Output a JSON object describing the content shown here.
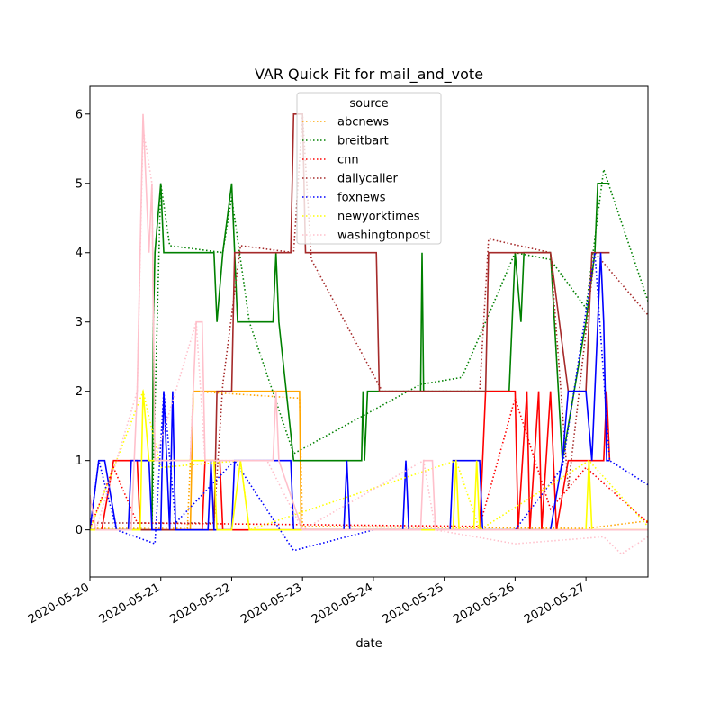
{
  "chart_data": {
    "type": "line",
    "title": "VAR Quick Fit for mail_and_vote",
    "xlabel": "date",
    "ylabel": "",
    "x_ticks": [
      "2020-05-20",
      "2020-05-21",
      "2020-05-22",
      "2020-05-23",
      "2020-05-24",
      "2020-05-25",
      "2020-05-26",
      "2020-05-27"
    ],
    "y_ticks": [
      0,
      1,
      2,
      3,
      4,
      5,
      6
    ],
    "xlim": [
      "2020-05-20",
      "2020-05-27T21:00"
    ],
    "ylim": [
      -0.68,
      6.4
    ],
    "legend": {
      "title": "source",
      "placement": "upper center"
    },
    "line_styles": {
      "observed": "solid",
      "fit": "dotted"
    },
    "series": [
      {
        "name": "abcnews",
        "color": "#ffa500",
        "observed": [
          [
            "2020-05-20T00:00",
            0
          ],
          [
            "2020-05-21T10:00",
            0
          ],
          [
            "2020-05-21T11:00",
            2
          ],
          [
            "2020-05-22T23:00",
            2
          ],
          [
            "2020-05-22T23:30",
            0
          ],
          [
            "2020-05-27T21:00",
            0
          ]
        ],
        "fit": [
          [
            "2020-05-20T00:00",
            0.02
          ],
          [
            "2020-05-21T09:00",
            0.02
          ],
          [
            "2020-05-21T11:00",
            2.0
          ],
          [
            "2020-05-22T23:00",
            1.9
          ],
          [
            "2020-05-23T00:00",
            0.05
          ],
          [
            "2020-05-27T00:00",
            0.02
          ],
          [
            "2020-05-27T21:00",
            0.13
          ]
        ]
      },
      {
        "name": "breitbart",
        "color": "#008000",
        "observed": [
          [
            "2020-05-20T00:00",
            0
          ],
          [
            "2020-05-20T21:00",
            0
          ],
          [
            "2020-05-20T21:30",
            3
          ],
          [
            "2020-05-20T22:00",
            4
          ],
          [
            "2020-05-21T00:00",
            5
          ],
          [
            "2020-05-21T01:00",
            4
          ],
          [
            "2020-05-21T18:00",
            4
          ],
          [
            "2020-05-21T19:00",
            3
          ],
          [
            "2020-05-21T21:00",
            4
          ],
          [
            "2020-05-22T00:00",
            5
          ],
          [
            "2020-05-22T02:00",
            3
          ],
          [
            "2020-05-22T14:00",
            3
          ],
          [
            "2020-05-22T15:00",
            4
          ],
          [
            "2020-05-22T16:00",
            3
          ],
          [
            "2020-05-22T21:00",
            1
          ],
          [
            "2020-05-23T20:00",
            1
          ],
          [
            "2020-05-23T20:30",
            2
          ],
          [
            "2020-05-23T21:00",
            1
          ],
          [
            "2020-05-23T22:00",
            2
          ],
          [
            "2020-05-24T00:00",
            2
          ],
          [
            "2020-05-24T16:00",
            2
          ],
          [
            "2020-05-24T16:30",
            4
          ],
          [
            "2020-05-24T17:00",
            2
          ],
          [
            "2020-05-25T22:00",
            2
          ],
          [
            "2020-05-26T00:00",
            4
          ],
          [
            "2020-05-26T02:00",
            3
          ],
          [
            "2020-05-26T03:00",
            4
          ],
          [
            "2020-05-26T12:00",
            4
          ],
          [
            "2020-05-26T16:00",
            1
          ],
          [
            "2020-05-27T00:00",
            3
          ],
          [
            "2020-05-27T03:00",
            4
          ],
          [
            "2020-05-27T04:00",
            5
          ],
          [
            "2020-05-27T08:00",
            5
          ]
        ],
        "fit": [
          [
            "2020-05-20T21:00",
            0.1
          ],
          [
            "2020-05-21T00:00",
            5.0
          ],
          [
            "2020-05-21T03:00",
            4.1
          ],
          [
            "2020-05-21T21:00",
            4.0
          ],
          [
            "2020-05-22T00:00",
            4.8
          ],
          [
            "2020-05-22T06:00",
            3.0
          ],
          [
            "2020-05-22T21:00",
            1.1
          ],
          [
            "2020-05-24T16:00",
            2.1
          ],
          [
            "2020-05-25T06:00",
            2.2
          ],
          [
            "2020-05-26T00:00",
            4.0
          ],
          [
            "2020-05-26T12:00",
            3.9
          ],
          [
            "2020-05-27T00:00",
            3.2
          ],
          [
            "2020-05-27T06:00",
            5.2
          ],
          [
            "2020-05-27T21:00",
            3.3
          ]
        ]
      },
      {
        "name": "cnn",
        "color": "#ff0000",
        "observed": [
          [
            "2020-05-20T00:00",
            0
          ],
          [
            "2020-05-20T04:00",
            0
          ],
          [
            "2020-05-20T08:00",
            1
          ],
          [
            "2020-05-20T16:00",
            1
          ],
          [
            "2020-05-20T17:00",
            0
          ],
          [
            "2020-05-21T14:00",
            0
          ],
          [
            "2020-05-21T15:00",
            1
          ],
          [
            "2020-05-21T20:00",
            1
          ],
          [
            "2020-05-21T21:00",
            0
          ],
          [
            "2020-05-25T12:00",
            0
          ],
          [
            "2020-05-25T14:00",
            2
          ],
          [
            "2020-05-26T00:00",
            2
          ],
          [
            "2020-05-26T01:00",
            0
          ],
          [
            "2020-05-26T04:00",
            2
          ],
          [
            "2020-05-26T05:00",
            0
          ],
          [
            "2020-05-26T08:00",
            2
          ],
          [
            "2020-05-26T09:00",
            0
          ],
          [
            "2020-05-26T12:00",
            2
          ],
          [
            "2020-05-26T14:00",
            0
          ],
          [
            "2020-05-26T18:00",
            1
          ],
          [
            "2020-05-27T06:00",
            1
          ],
          [
            "2020-05-27T07:00",
            2
          ],
          [
            "2020-05-27T08:00",
            1
          ]
        ],
        "fit": [
          [
            "2020-05-20T00:00",
            0.02
          ],
          [
            "2020-05-20T08:00",
            0.9
          ],
          [
            "2020-05-20T16:00",
            0.1
          ],
          [
            "2020-05-25T12:00",
            0.05
          ],
          [
            "2020-05-26T00:00",
            1.9
          ],
          [
            "2020-05-26T12:00",
            0.3
          ],
          [
            "2020-05-27T00:00",
            0.9
          ],
          [
            "2020-05-27T21:00",
            0.1
          ]
        ]
      },
      {
        "name": "dailycaller",
        "color": "#a52a2a",
        "observed": [
          [
            "2020-05-20T00:00",
            0
          ],
          [
            "2020-05-21T00:00",
            0
          ],
          [
            "2020-05-21T18:00",
            0
          ],
          [
            "2020-05-21T19:00",
            2
          ],
          [
            "2020-05-22T00:00",
            2
          ],
          [
            "2020-05-22T01:00",
            4
          ],
          [
            "2020-05-22T20:00",
            4
          ],
          [
            "2020-05-22T21:00",
            6
          ],
          [
            "2020-05-23T00:00",
            6
          ],
          [
            "2020-05-23T01:00",
            4
          ],
          [
            "2020-05-24T01:00",
            4
          ],
          [
            "2020-05-24T02:00",
            2
          ],
          [
            "2020-05-25T14:00",
            2
          ],
          [
            "2020-05-25T15:00",
            4
          ],
          [
            "2020-05-26T12:00",
            4
          ],
          [
            "2020-05-26T18:00",
            2
          ],
          [
            "2020-05-27T00:00",
            2
          ],
          [
            "2020-05-27T02:00",
            4
          ],
          [
            "2020-05-27T08:00",
            4
          ]
        ],
        "fit": [
          [
            "2020-05-20T00:00",
            0.1
          ],
          [
            "2020-05-21T18:00",
            0.1
          ],
          [
            "2020-05-21T21:00",
            2.1
          ],
          [
            "2020-05-22T03:00",
            4.1
          ],
          [
            "2020-05-22T21:00",
            4.0
          ],
          [
            "2020-05-23T00:00",
            6.0
          ],
          [
            "2020-05-23T03:00",
            3.9
          ],
          [
            "2020-05-24T03:00",
            2.0
          ],
          [
            "2020-05-25T12:00",
            2.0
          ],
          [
            "2020-05-25T15:00",
            4.2
          ],
          [
            "2020-05-26T12:00",
            4.0
          ],
          [
            "2020-05-26T18:00",
            0.6
          ],
          [
            "2020-05-27T03:00",
            4.0
          ],
          [
            "2020-05-27T21:00",
            3.1
          ]
        ]
      },
      {
        "name": "foxnews",
        "color": "#0000ff",
        "observed": [
          [
            "2020-05-20T00:00",
            0
          ],
          [
            "2020-05-20T03:00",
            1
          ],
          [
            "2020-05-20T05:00",
            1
          ],
          [
            "2020-05-20T09:00",
            0
          ],
          [
            "2020-05-20T13:00",
            0
          ],
          [
            "2020-05-20T14:00",
            1
          ],
          [
            "2020-05-20T20:00",
            1
          ],
          [
            "2020-05-20T21:00",
            0
          ],
          [
            "2020-05-21T00:00",
            0
          ],
          [
            "2020-05-21T01:00",
            2
          ],
          [
            "2020-05-21T03:00",
            0
          ],
          [
            "2020-05-21T04:00",
            2
          ],
          [
            "2020-05-21T05:00",
            0
          ],
          [
            "2020-05-21T16:00",
            0
          ],
          [
            "2020-05-21T17:00",
            1
          ],
          [
            "2020-05-21T18:00",
            0
          ],
          [
            "2020-05-22T00:00",
            0
          ],
          [
            "2020-05-22T01:00",
            1
          ],
          [
            "2020-05-22T20:00",
            1
          ],
          [
            "2020-05-22T21:00",
            0
          ],
          [
            "2020-05-23T14:00",
            0
          ],
          [
            "2020-05-23T15:00",
            1
          ],
          [
            "2020-05-23T16:00",
            0
          ],
          [
            "2020-05-24T10:00",
            0
          ],
          [
            "2020-05-24T11:00",
            1
          ],
          [
            "2020-05-24T12:00",
            0
          ],
          [
            "2020-05-25T02:00",
            0
          ],
          [
            "2020-05-25T03:00",
            1
          ],
          [
            "2020-05-25T12:00",
            1
          ],
          [
            "2020-05-25T13:00",
            0
          ],
          [
            "2020-05-26T09:00",
            0
          ],
          [
            "2020-05-26T12:00",
            0
          ],
          [
            "2020-05-26T16:00",
            1
          ],
          [
            "2020-05-26T18:00",
            2
          ],
          [
            "2020-05-27T00:00",
            2
          ],
          [
            "2020-05-27T02:00",
            1
          ],
          [
            "2020-05-27T05:00",
            4
          ],
          [
            "2020-05-27T06:00",
            3
          ],
          [
            "2020-05-27T07:00",
            1
          ],
          [
            "2020-05-27T08:00",
            1
          ]
        ],
        "fit": [
          [
            "2020-05-20T00:00",
            0.0
          ],
          [
            "2020-05-20T03:00",
            1.0
          ],
          [
            "2020-05-20T09:00",
            0.0
          ],
          [
            "2020-05-20T22:00",
            -0.2
          ],
          [
            "2020-05-21T01:00",
            2.0
          ],
          [
            "2020-05-21T05:00",
            0.1
          ],
          [
            "2020-05-22T01:00",
            1.0
          ],
          [
            "2020-05-22T21:00",
            -0.3
          ],
          [
            "2020-05-24T00:00",
            0.0
          ],
          [
            "2020-05-26T00:00",
            0.0
          ],
          [
            "2020-05-26T16:00",
            0.9
          ],
          [
            "2020-05-27T03:00",
            4.0
          ],
          [
            "2020-05-27T08:00",
            1.0
          ],
          [
            "2020-05-27T21:00",
            0.65
          ]
        ]
      },
      {
        "name": "newyorktimes",
        "color": "#ffff00",
        "observed": [
          [
            "2020-05-20T00:00",
            0
          ],
          [
            "2020-05-20T17:00",
            0
          ],
          [
            "2020-05-20T18:00",
            2
          ],
          [
            "2020-05-20T20:00",
            1
          ],
          [
            "2020-05-21T18:00",
            1
          ],
          [
            "2020-05-21T19:00",
            0
          ],
          [
            "2020-05-22T00:00",
            0
          ],
          [
            "2020-05-22T03:00",
            1
          ],
          [
            "2020-05-22T06:00",
            0
          ],
          [
            "2020-05-25T03:00",
            0
          ],
          [
            "2020-05-25T04:00",
            1
          ],
          [
            "2020-05-25T05:00",
            0
          ],
          [
            "2020-05-25T10:00",
            0
          ],
          [
            "2020-05-25T11:00",
            1
          ],
          [
            "2020-05-25T12:00",
            0
          ],
          [
            "2020-05-27T00:00",
            0
          ],
          [
            "2020-05-27T01:00",
            1
          ],
          [
            "2020-05-27T02:00",
            0
          ],
          [
            "2020-05-27T21:00",
            0
          ]
        ],
        "fit": [
          [
            "2020-05-20T00:00",
            0.0
          ],
          [
            "2020-05-20T18:00",
            2.0
          ],
          [
            "2020-05-21T00:00",
            0.9
          ],
          [
            "2020-05-22T03:00",
            1.0
          ],
          [
            "2020-05-22T06:00",
            0.0
          ],
          [
            "2020-05-25T04:00",
            1.0
          ],
          [
            "2020-05-25T12:00",
            0.0
          ],
          [
            "2020-05-27T01:00",
            1.0
          ],
          [
            "2020-05-27T21:00",
            0.05
          ]
        ]
      },
      {
        "name": "washingtonpost",
        "color": "#ffc0cb",
        "observed": [
          [
            "2020-05-20T00:00",
            0.5
          ],
          [
            "2020-05-20T02:00",
            0
          ],
          [
            "2020-05-20T14:00",
            0
          ],
          [
            "2020-05-20T16:00",
            2
          ],
          [
            "2020-05-20T18:00",
            6
          ],
          [
            "2020-05-20T20:00",
            4
          ],
          [
            "2020-05-20T21:00",
            5
          ],
          [
            "2020-05-20T22:00",
            1
          ],
          [
            "2020-05-21T10:00",
            1
          ],
          [
            "2020-05-21T12:00",
            3
          ],
          [
            "2020-05-21T14:00",
            3
          ],
          [
            "2020-05-21T15:00",
            1
          ],
          [
            "2020-05-22T00:00",
            1
          ],
          [
            "2020-05-22T14:00",
            1
          ],
          [
            "2020-05-22T15:00",
            2
          ],
          [
            "2020-05-22T16:00",
            1
          ],
          [
            "2020-05-23T00:00",
            0
          ],
          [
            "2020-05-24T16:00",
            0
          ],
          [
            "2020-05-24T17:00",
            1
          ],
          [
            "2020-05-24T20:00",
            1
          ],
          [
            "2020-05-24T21:00",
            0
          ],
          [
            "2020-05-26T17:00",
            0
          ],
          [
            "2020-05-27T21:00",
            0
          ]
        ],
        "fit": [
          [
            "2020-05-20T00:00",
            0.5
          ],
          [
            "2020-05-20T02:00",
            0
          ],
          [
            "2020-05-20T16:00",
            2.0
          ],
          [
            "2020-05-20T18:00",
            5.8
          ],
          [
            "2020-05-20T21:00",
            5.0
          ],
          [
            "2020-05-20T22:00",
            1.0
          ],
          [
            "2020-05-21T12:00",
            3.0
          ],
          [
            "2020-05-21T15:00",
            1.0
          ],
          [
            "2020-05-22T12:00",
            1.0
          ],
          [
            "2020-05-23T00:00",
            0.0
          ],
          [
            "2020-05-24T17:00",
            1.0
          ],
          [
            "2020-05-24T21:00",
            0.0
          ],
          [
            "2020-05-26T00:00",
            -0.2
          ],
          [
            "2020-05-27T06:00",
            -0.1
          ],
          [
            "2020-05-27T12:00",
            -0.35
          ],
          [
            "2020-05-27T21:00",
            -0.1
          ]
        ]
      }
    ]
  }
}
